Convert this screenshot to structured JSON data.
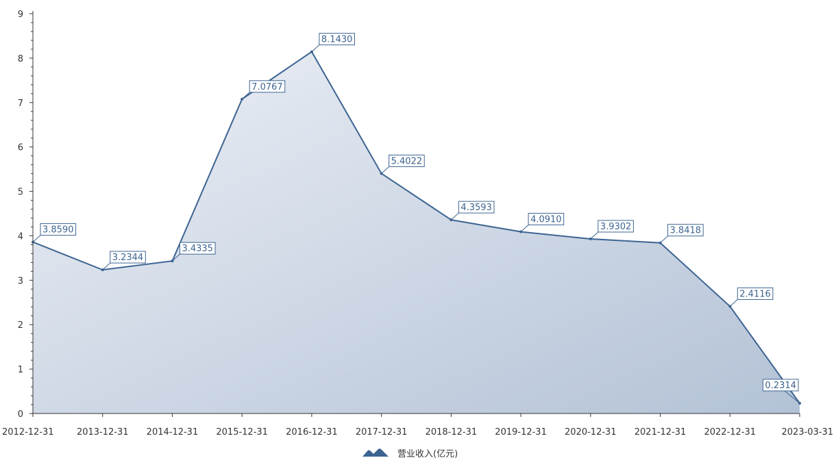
{
  "chart_data": {
    "type": "area",
    "categories": [
      "2012-12-31",
      "2013-12-31",
      "2014-12-31",
      "2015-12-31",
      "2016-12-31",
      "2017-12-31",
      "2018-12-31",
      "2019-12-31",
      "2020-12-31",
      "2021-12-31",
      "2022-12-31",
      "2023-03-31"
    ],
    "series": [
      {
        "name": "营业收入(亿元)",
        "values": [
          3.859,
          3.2344,
          3.4335,
          7.0767,
          8.143,
          5.4022,
          4.3593,
          4.091,
          3.9302,
          3.8418,
          2.4116,
          0.2314
        ],
        "labels": [
          "3.8590",
          "3.2344",
          "3.4335",
          "7.0767",
          "8.1430",
          "5.4022",
          "4.3593",
          "4.0910",
          "3.9302",
          "3.8418",
          "2.4116",
          "0.2314"
        ]
      }
    ],
    "ylim": [
      0,
      9
    ],
    "yticks": [
      "0",
      "1",
      "2",
      "3",
      "4",
      "5",
      "6",
      "7",
      "8",
      "9"
    ],
    "grid": false,
    "legend_position": "bottom-center",
    "colors": {
      "line": "#3d6491",
      "fill_light": "#edf0f6",
      "fill_dark": "#b3c2d6",
      "axis": "#333333",
      "text": "#333333"
    }
  }
}
